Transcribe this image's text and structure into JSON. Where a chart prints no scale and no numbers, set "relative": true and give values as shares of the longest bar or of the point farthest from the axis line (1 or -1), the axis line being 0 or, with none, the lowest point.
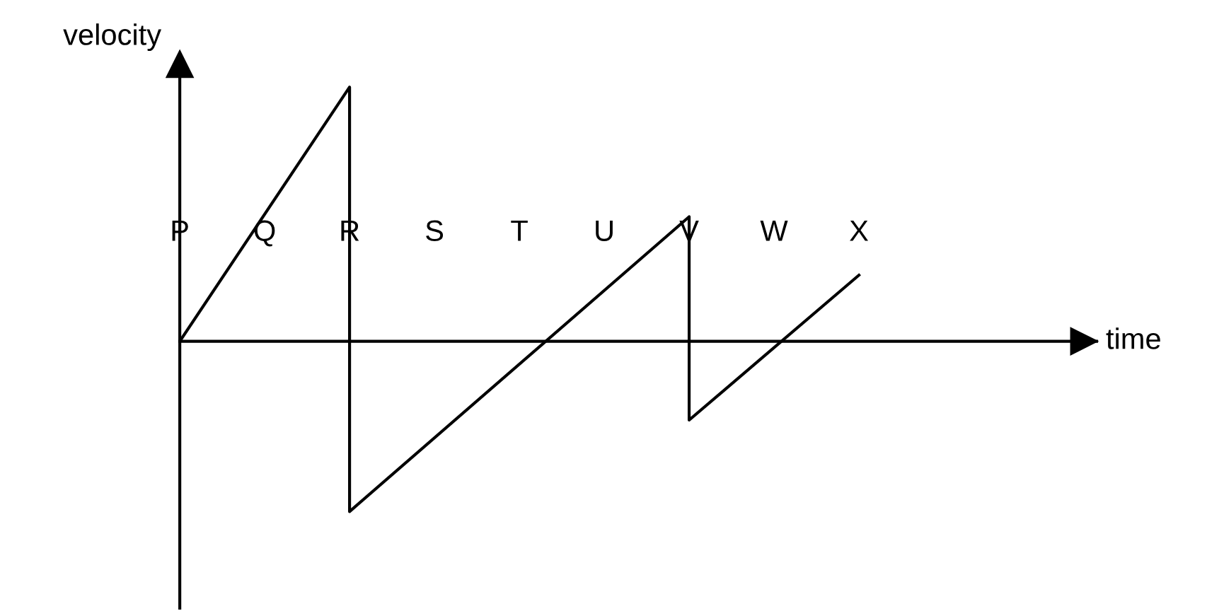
{
  "chart_data": {
    "type": "line",
    "relative": true,
    "annotations": [
      "time"
    ],
    "ylabel": "velocity",
    "tick_labels": "x",
    "marker": "none",
    "line_style": "solid",
    "categories": [
      "P",
      "Q",
      "R",
      "S",
      "T",
      "U",
      "V",
      "W",
      "X"
    ],
    "series": [
      {
        "color": "#000000",
        "x": [
          "P",
          "R",
          "R",
          "V",
          "V",
          "X"
        ],
        "values": [
          0,
          1,
          -0.67,
          0.49,
          -0.31,
          0.26
        ]
      }
    ]
  }
}
